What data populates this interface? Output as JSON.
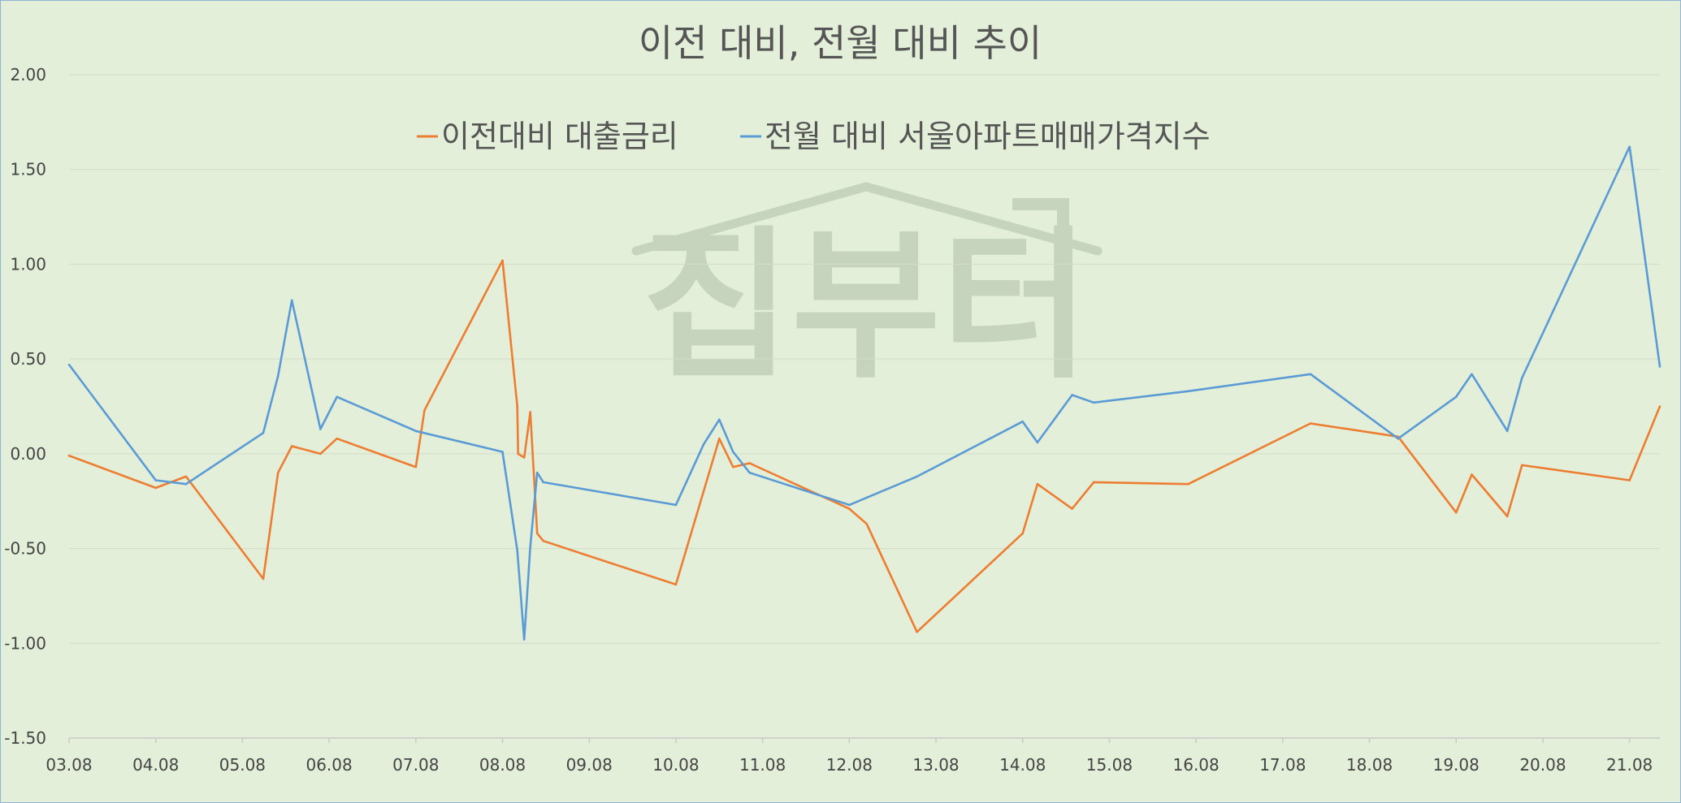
{
  "chart_data": {
    "type": "line",
    "title": "이전 대비, 전월 대비 추이",
    "watermark": "집부터",
    "xlabel": "",
    "ylabel": "",
    "ylim": [
      -1.5,
      2.0
    ],
    "xlim": [
      3.08,
      21.43
    ],
    "ytick_values": [
      -1.5,
      -1.0,
      -0.5,
      0.0,
      0.5,
      1.0,
      1.5,
      2.0
    ],
    "ytick_labels": [
      "-1.50",
      "-1.00",
      "-0.50",
      "0.00",
      "0.50",
      "1.00",
      "1.50",
      "2.00"
    ],
    "xtick_values": [
      3.08,
      4.08,
      5.08,
      6.08,
      7.08,
      8.08,
      9.08,
      10.08,
      11.08,
      12.08,
      13.08,
      14.08,
      15.08,
      16.08,
      17.08,
      18.08,
      19.08,
      20.08,
      21.08
    ],
    "xtick_labels": [
      "03.08",
      "04.08",
      "05.08",
      "06.08",
      "07.08",
      "08.08",
      "09.08",
      "10.08",
      "11.08",
      "12.08",
      "13.08",
      "14.08",
      "15.08",
      "16.08",
      "17.08",
      "18.08",
      "19.08",
      "20.08",
      "21.08"
    ],
    "grid": "horizontal",
    "legend_position": "top",
    "series": [
      {
        "name": "이전대비 대출금리",
        "color": "#ed7d31",
        "points": [
          [
            3.08,
            -0.01
          ],
          [
            4.08,
            -0.18
          ],
          [
            4.43,
            -0.12
          ],
          [
            5.32,
            -0.66
          ],
          [
            5.49,
            -0.1
          ],
          [
            5.65,
            0.04
          ],
          [
            5.98,
            0.0
          ],
          [
            6.17,
            0.08
          ],
          [
            7.08,
            -0.07
          ],
          [
            7.18,
            0.23
          ],
          [
            8.08,
            1.02
          ],
          [
            8.25,
            0.25
          ],
          [
            8.26,
            0.0
          ],
          [
            8.33,
            -0.02
          ],
          [
            8.4,
            0.22
          ],
          [
            8.48,
            -0.42
          ],
          [
            8.55,
            -0.46
          ],
          [
            10.08,
            -0.69
          ],
          [
            10.58,
            0.08
          ],
          [
            10.74,
            -0.07
          ],
          [
            10.93,
            -0.05
          ],
          [
            12.08,
            -0.29
          ],
          [
            12.28,
            -0.37
          ],
          [
            12.86,
            -0.94
          ],
          [
            14.08,
            -0.42
          ],
          [
            14.25,
            -0.16
          ],
          [
            14.65,
            -0.29
          ],
          [
            14.9,
            -0.15
          ],
          [
            15.99,
            -0.16
          ],
          [
            17.4,
            0.16
          ],
          [
            18.41,
            0.09
          ],
          [
            19.08,
            -0.31
          ],
          [
            19.26,
            -0.11
          ],
          [
            19.67,
            -0.33
          ],
          [
            19.84,
            -0.06
          ],
          [
            21.08,
            -0.14
          ],
          [
            21.43,
            0.25
          ]
        ]
      },
      {
        "name": "전월 대비 서울아파트매매가격지수",
        "color": "#5b9bd5",
        "points": [
          [
            3.08,
            0.47
          ],
          [
            4.08,
            -0.14
          ],
          [
            4.43,
            -0.16
          ],
          [
            5.32,
            0.11
          ],
          [
            5.49,
            0.41
          ],
          [
            5.65,
            0.81
          ],
          [
            5.98,
            0.13
          ],
          [
            6.17,
            0.3
          ],
          [
            7.08,
            0.12
          ],
          [
            8.08,
            0.01
          ],
          [
            8.25,
            -0.51
          ],
          [
            8.33,
            -0.98
          ],
          [
            8.4,
            -0.49
          ],
          [
            8.48,
            -0.1
          ],
          [
            8.55,
            -0.15
          ],
          [
            10.08,
            -0.27
          ],
          [
            10.4,
            0.05
          ],
          [
            10.58,
            0.18
          ],
          [
            10.74,
            0.01
          ],
          [
            10.93,
            -0.1
          ],
          [
            12.08,
            -0.27
          ],
          [
            12.86,
            -0.12
          ],
          [
            14.08,
            0.17
          ],
          [
            14.25,
            0.06
          ],
          [
            14.65,
            0.31
          ],
          [
            14.9,
            0.27
          ],
          [
            15.99,
            0.33
          ],
          [
            17.4,
            0.42
          ],
          [
            18.41,
            0.08
          ],
          [
            19.08,
            0.3
          ],
          [
            19.26,
            0.42
          ],
          [
            19.67,
            0.12
          ],
          [
            19.84,
            0.4
          ],
          [
            21.08,
            1.62
          ],
          [
            21.43,
            0.46
          ]
        ]
      }
    ]
  }
}
